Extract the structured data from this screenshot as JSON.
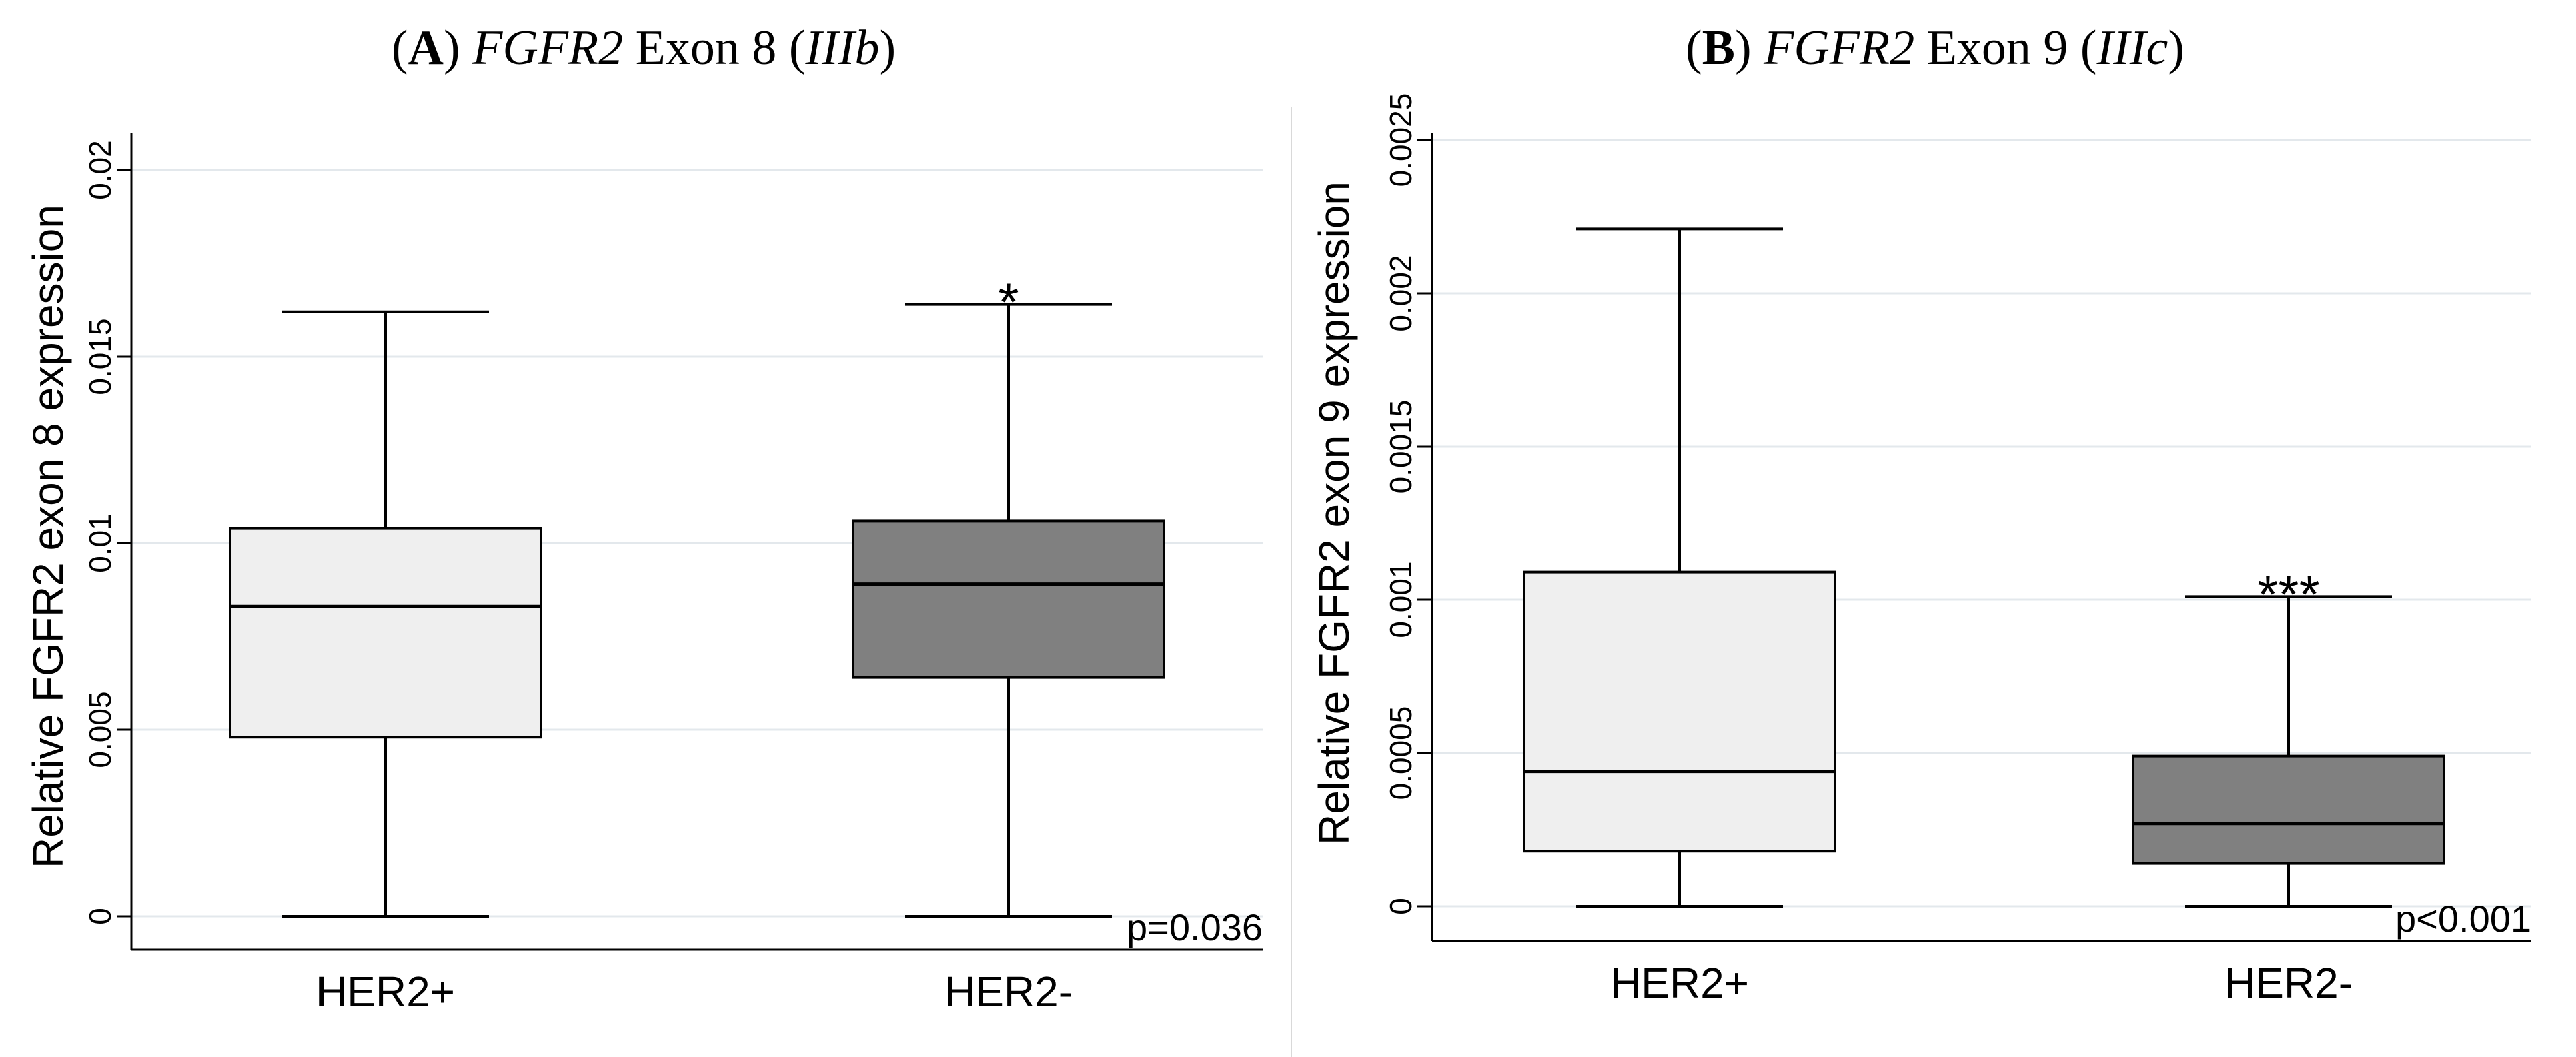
{
  "colors": {
    "positive_box": "#efefef",
    "negative_box": "#808080",
    "gridline": "#e3e8ec",
    "axis": "#000000"
  },
  "panels": [
    {
      "letter": "A",
      "gene": "FGFR2",
      "exon_text": " Exon 8 (",
      "isoform": "IIIb",
      "close": ")"
    },
    {
      "letter": "B",
      "gene": "FGFR2",
      "exon_text": " Exon 9 (",
      "isoform": "IIIc",
      "close": ")"
    }
  ],
  "chart_data": [
    {
      "type": "box",
      "title": "(A) FGFR2 Exon 8 (IIIb)",
      "ylabel": "Relative FGFR2 exon 8 expression",
      "xlabel": "",
      "ylim": [
        0,
        0.022
      ],
      "yticks": [
        0,
        0.005,
        0.01,
        0.015,
        0.02
      ],
      "ytick_labels": [
        "0",
        "0.005",
        "0.01",
        "0.015",
        "0.02"
      ],
      "grid": true,
      "categories": [
        "HER2+",
        "HER2-"
      ],
      "boxes": [
        {
          "name": "HER2+",
          "min": 0,
          "q1": 0.0048,
          "median": 0.0083,
          "q3": 0.0104,
          "max": 0.0162,
          "color": "light"
        },
        {
          "name": "HER2-",
          "min": 0,
          "q1": 0.0064,
          "median": 0.0089,
          "q3": 0.0106,
          "max": 0.0164,
          "color": "dark"
        }
      ],
      "significance": "*",
      "p_value": "p=0.036"
    },
    {
      "type": "box",
      "title": "(B) FGFR2 Exon 9 (IIIc)",
      "ylabel": "Relative FGFR2 exon 9 expression",
      "xlabel": "",
      "ylim": [
        0,
        0.0025
      ],
      "yticks": [
        0,
        0.0005,
        0.001,
        0.0015,
        0.002,
        0.0025
      ],
      "ytick_labels": [
        "0",
        "0.0005",
        "0.001",
        "0.0015",
        "0.002",
        "0.0025"
      ],
      "grid": true,
      "categories": [
        "HER2+",
        "HER2-"
      ],
      "boxes": [
        {
          "name": "HER2+",
          "min": 0,
          "q1": 0.00018,
          "median": 0.00044,
          "q3": 0.00109,
          "max": 0.00221,
          "color": "light"
        },
        {
          "name": "HER2-",
          "min": 0,
          "q1": 0.00014,
          "median": 0.00027,
          "q3": 0.00049,
          "max": 0.00101,
          "color": "dark"
        }
      ],
      "significance": "***",
      "p_value": "p<0.001"
    }
  ]
}
